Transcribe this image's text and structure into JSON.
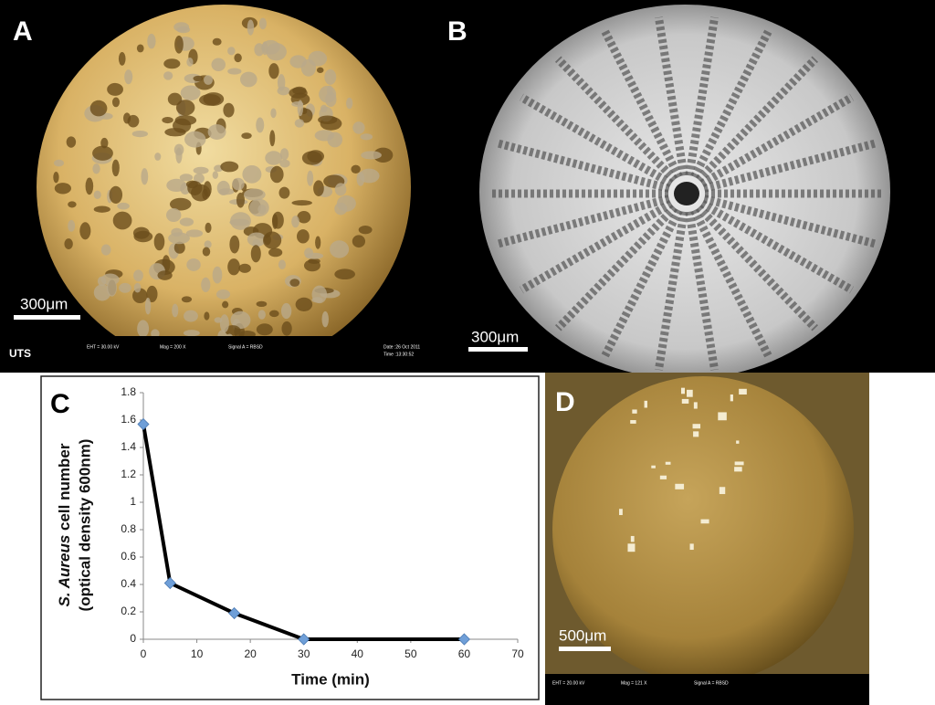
{
  "panels": [
    {
      "label": "A",
      "scale_bar": "300μm",
      "logo": "UTS",
      "metadata": [
        "EHT = 30.00 kV",
        "Mag = 200 X",
        "Signal A = RBSD",
        "Date :26 Oct 2011",
        "Time :13:30:52"
      ]
    },
    {
      "label": "B",
      "scale_bar": "300μm"
    },
    {
      "label": "C"
    },
    {
      "label": "D",
      "scale_bar": "500μm",
      "metadata": [
        "EHT = 20.00 kV",
        "Mag = 121 X",
        "Signal A = RBSD"
      ]
    }
  ],
  "chart_data": {
    "type": "line",
    "x_label": "Time (min)",
    "y_label_italic": "S. Aureus",
    "y_label": " cell number",
    "y_label_line2": "(optical density 600nm)",
    "x": [
      0,
      5,
      17,
      30,
      60
    ],
    "series": [
      {
        "color": "#6f9fd8",
        "values": [
          1.57,
          0.41,
          0.19,
          0,
          0
        ]
      }
    ],
    "xlim": [
      0,
      70
    ],
    "xticks": [
      0,
      10,
      20,
      30,
      40,
      50,
      60,
      70
    ],
    "ylim": [
      0,
      1.8
    ],
    "yticks": [
      0,
      0.2,
      0.4,
      0.6,
      0.8,
      1,
      1.2,
      1.4,
      1.6,
      1.8
    ],
    "grid": false
  }
}
